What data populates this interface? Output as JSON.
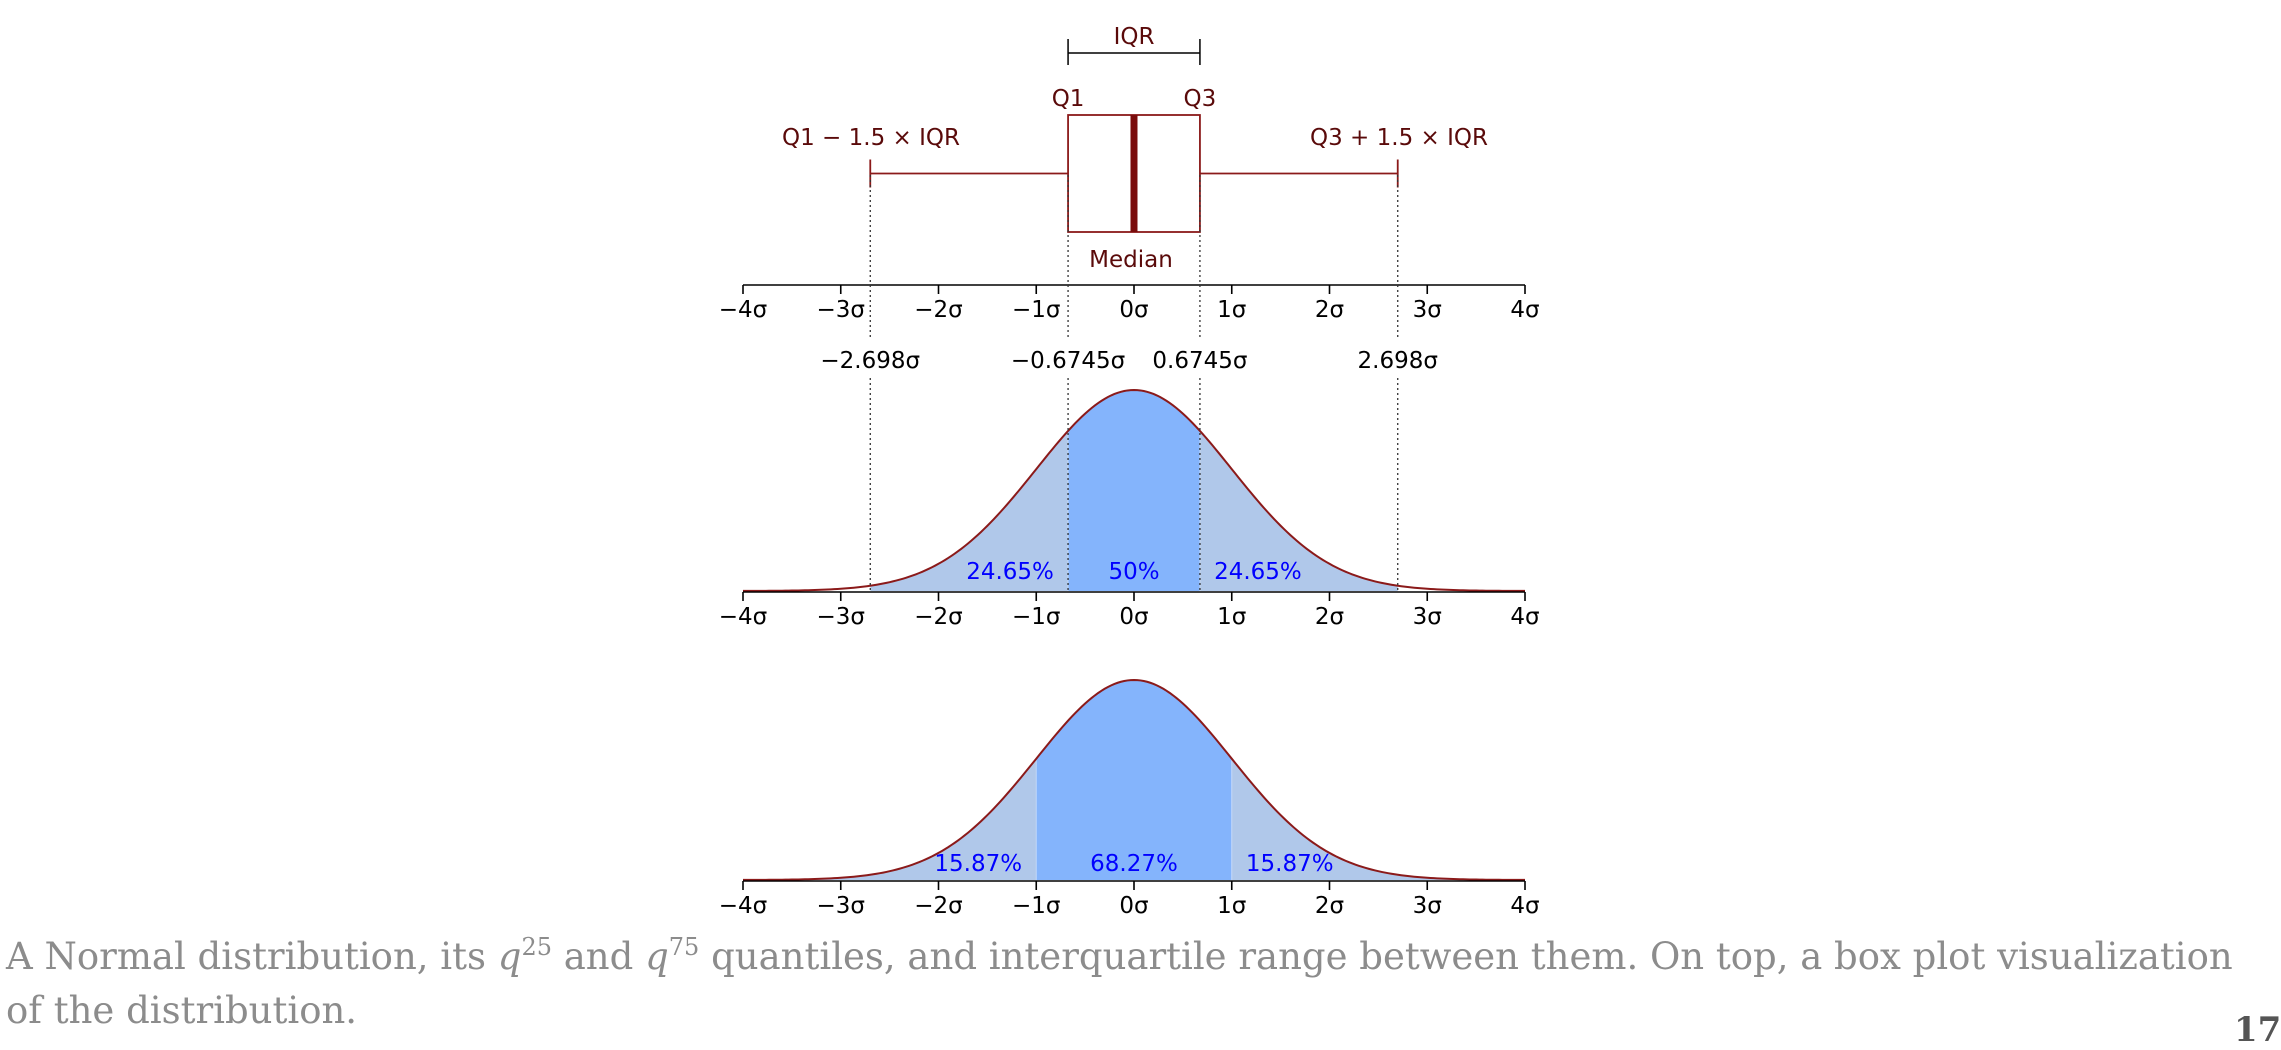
{
  "chart_data": [
    {
      "type": "box",
      "name": "boxplot",
      "q1": -0.6745,
      "median": 0,
      "q3": 0.6745,
      "whisker_low": -2.698,
      "whisker_high": 2.698,
      "labels": {
        "iqr": "IQR",
        "q1": "Q1",
        "q3": "Q3",
        "median": "Median",
        "whisker_low": "Q1 − 1.5 × IQR",
        "whisker_high": "Q3 + 1.5 × IQR"
      },
      "ticks": [
        -4,
        -3,
        -2,
        -1,
        0,
        1,
        2,
        3,
        4
      ],
      "tick_labels": [
        "−4σ",
        "−3σ",
        "−2σ",
        "−1σ",
        "0σ",
        "1σ",
        "2σ",
        "3σ",
        "4σ"
      ],
      "marker_values": [
        -2.698,
        -0.6745,
        0.6745,
        2.698
      ],
      "marker_labels": [
        "−2.698σ",
        "−0.6745σ",
        "0.6745σ",
        "2.698σ"
      ],
      "xlim": [
        -4,
        4
      ],
      "colors": {
        "box": "#8b1a1a",
        "median": "#7a0c0c",
        "label": "#5a0a0a"
      }
    },
    {
      "type": "area",
      "name": "normal-pdf-quartiles",
      "distribution": "normal",
      "xlim": [
        -4,
        4
      ],
      "regions": [
        {
          "from": -2.698,
          "to": -0.6745,
          "label": "24.65%",
          "shade": "light"
        },
        {
          "from": -0.6745,
          "to": 0.6745,
          "label": "50%",
          "shade": "dark"
        },
        {
          "from": 0.6745,
          "to": 2.698,
          "label": "24.65%",
          "shade": "light"
        }
      ],
      "ticks": [
        -4,
        -3,
        -2,
        -1,
        0,
        1,
        2,
        3,
        4
      ],
      "tick_labels": [
        "−4σ",
        "−3σ",
        "−2σ",
        "−1σ",
        "0σ",
        "1σ",
        "2σ",
        "3σ",
        "4σ"
      ],
      "colors": {
        "light": "#b0c8ea",
        "dark": "#84b4fc",
        "curve": "#8b1a1a",
        "label": "#0000ff"
      }
    },
    {
      "type": "area",
      "name": "normal-pdf-sigma",
      "distribution": "normal",
      "xlim": [
        -4,
        4
      ],
      "regions": [
        {
          "from": -4,
          "to": -1,
          "label": "15.87%",
          "shade": "light"
        },
        {
          "from": -1,
          "to": 1,
          "label": "68.27%",
          "shade": "dark"
        },
        {
          "from": 1,
          "to": 4,
          "label": "15.87%",
          "shade": "light"
        }
      ],
      "ticks": [
        -4,
        -3,
        -2,
        -1,
        0,
        1,
        2,
        3,
        4
      ],
      "tick_labels": [
        "−4σ",
        "−3σ",
        "−2σ",
        "−1σ",
        "0σ",
        "1σ",
        "2σ",
        "3σ",
        "4σ"
      ],
      "colors": {
        "light": "#b0c8ea",
        "dark": "#84b4fc",
        "curve": "#8b1a1a",
        "label": "#0000ff"
      }
    }
  ],
  "caption": {
    "part1": "A Normal distribution, its ",
    "q": "q",
    "sup1": "25",
    "part2": " and ",
    "sup2": "75",
    "part3": " quantiles, and interquartile range between them. On top, a box plot visualization of the distribution."
  },
  "page_number": "17"
}
